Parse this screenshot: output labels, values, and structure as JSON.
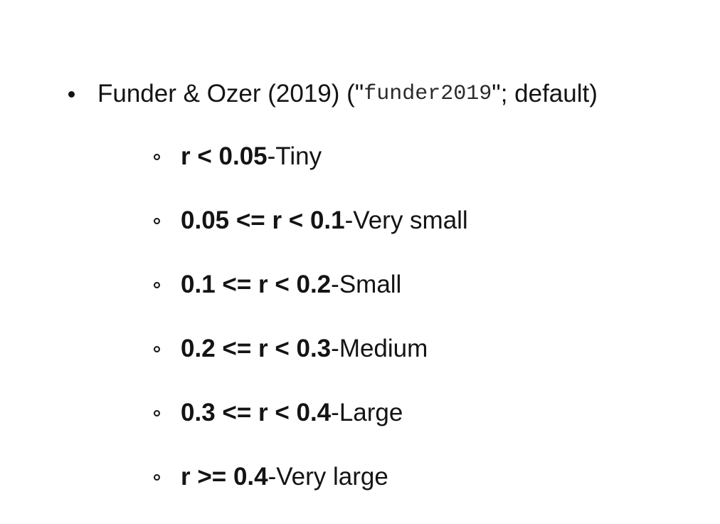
{
  "top_item": {
    "text_before": "Funder & Ozer (2019) (\"",
    "code": "funder2019",
    "text_after": "\"; default)"
  },
  "sub_items": [
    {
      "range": "r < 0.05",
      "sep": " - ",
      "label": "Tiny"
    },
    {
      "range": "0.05 <= r < 0.1",
      "sep": " - ",
      "label": "Very small"
    },
    {
      "range": "0.1 <= r < 0.2",
      "sep": " - ",
      "label": "Small"
    },
    {
      "range": "0.2 <= r < 0.3",
      "sep": " - ",
      "label": "Medium"
    },
    {
      "range": "0.3 <= r < 0.4",
      "sep": " - ",
      "label": "Large"
    },
    {
      "range": "r >= 0.4",
      "sep": " - ",
      "label": "Very large"
    }
  ]
}
